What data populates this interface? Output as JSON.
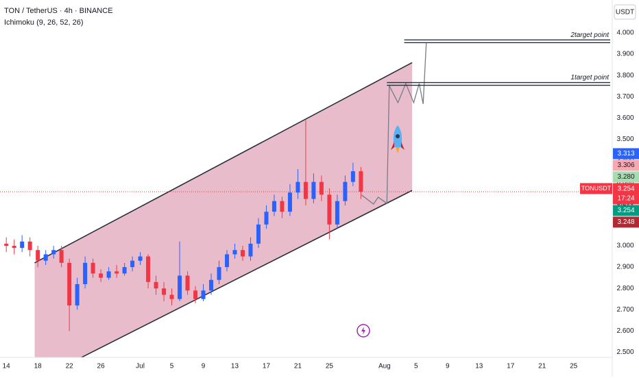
{
  "chart_data": {
    "type": "candlestick",
    "title": "TON / TetherUS · 4h · BINANCE",
    "indicator": "Ichimoku (9, 26, 52, 26)",
    "currency": "USDT",
    "symbol": "TONUSDT",
    "up_color": "#2962ff",
    "down_color": "#f23645",
    "x": [
      0,
      1,
      2,
      3,
      4,
      5,
      6,
      7,
      8,
      9,
      10,
      11,
      12,
      13,
      14,
      15,
      16,
      17,
      18,
      19,
      20,
      21,
      22,
      23,
      24,
      25,
      26,
      27,
      28,
      29,
      30,
      31,
      32,
      33,
      34,
      35,
      36,
      37,
      38,
      39,
      40,
      41,
      42,
      43,
      44,
      45
    ],
    "open": [
      3.01,
      3.0,
      2.99,
      3.02,
      2.98,
      2.93,
      2.96,
      2.98,
      2.92,
      2.72,
      2.82,
      2.92,
      2.87,
      2.85,
      2.88,
      2.87,
      2.9,
      2.93,
      2.95,
      2.83,
      2.8,
      2.77,
      2.75,
      2.86,
      2.79,
      2.75,
      2.79,
      2.84,
      2.9,
      2.96,
      2.98,
      2.95,
      3.01,
      3.1,
      3.16,
      3.21,
      3.16,
      3.25,
      3.3,
      3.22,
      3.3,
      3.24,
      3.1,
      3.21,
      3.3,
      3.35
    ],
    "high": [
      3.04,
      3.03,
      3.05,
      3.04,
      3.0,
      2.98,
      3.0,
      3.0,
      2.94,
      2.85,
      2.95,
      2.94,
      2.89,
      2.9,
      2.91,
      2.92,
      2.95,
      2.97,
      2.96,
      2.86,
      2.83,
      2.8,
      3.02,
      2.88,
      2.81,
      2.82,
      2.87,
      2.93,
      2.98,
      3.01,
      3.0,
      3.04,
      3.13,
      3.19,
      3.24,
      3.23,
      3.29,
      3.36,
      3.59,
      3.34,
      3.33,
      3.27,
      3.24,
      3.33,
      3.39,
      3.37
    ],
    "low": [
      2.97,
      2.96,
      2.97,
      2.95,
      2.9,
      2.91,
      2.94,
      2.9,
      2.6,
      2.7,
      2.8,
      2.85,
      2.83,
      2.84,
      2.85,
      2.86,
      2.88,
      2.91,
      2.8,
      2.77,
      2.74,
      2.72,
      2.74,
      2.77,
      2.73,
      2.74,
      2.77,
      2.82,
      2.88,
      2.94,
      2.93,
      2.93,
      2.99,
      3.08,
      3.14,
      3.13,
      3.14,
      3.22,
      3.19,
      3.2,
      3.21,
      3.03,
      3.08,
      3.19,
      3.28,
      3.22
    ],
    "close": [
      3.0,
      2.99,
      3.02,
      2.98,
      2.93,
      2.96,
      2.98,
      2.92,
      2.72,
      2.82,
      2.92,
      2.87,
      2.85,
      2.88,
      2.87,
      2.9,
      2.93,
      2.95,
      2.83,
      2.8,
      2.77,
      2.75,
      2.86,
      2.79,
      2.75,
      2.79,
      2.84,
      2.9,
      2.96,
      2.98,
      2.95,
      3.01,
      3.1,
      3.16,
      3.21,
      3.16,
      3.25,
      3.3,
      3.22,
      3.3,
      3.24,
      3.1,
      3.21,
      3.3,
      3.35,
      3.254
    ],
    "xlim": [
      -0.8,
      76.9
    ],
    "ylim": [
      2.476,
      4.154
    ],
    "xticks": [
      {
        "value": 0,
        "label": "14"
      },
      {
        "value": 4,
        "label": "18"
      },
      {
        "value": 8,
        "label": "22"
      },
      {
        "value": 12,
        "label": "26"
      },
      {
        "value": 17,
        "label": "Jul"
      },
      {
        "value": 21,
        "label": "5"
      },
      {
        "value": 25,
        "label": "9"
      },
      {
        "value": 29,
        "label": "13"
      },
      {
        "value": 33,
        "label": "17"
      },
      {
        "value": 37,
        "label": "21"
      },
      {
        "value": 41,
        "label": "25"
      },
      {
        "value": 48,
        "label": "Aug"
      },
      {
        "value": 52,
        "label": "5"
      },
      {
        "value": 56,
        "label": "9"
      },
      {
        "value": 60,
        "label": "13"
      },
      {
        "value": 64,
        "label": "17"
      },
      {
        "value": 68,
        "label": "21"
      },
      {
        "value": 72,
        "label": "25"
      }
    ],
    "yticks": [
      {
        "value": 4.0,
        "label": "4.000"
      },
      {
        "value": 3.9,
        "label": "3.900"
      },
      {
        "value": 3.8,
        "label": "3.800"
      },
      {
        "value": 3.7,
        "label": "3.700"
      },
      {
        "value": 3.6,
        "label": "3.600"
      },
      {
        "value": 3.5,
        "label": "3.500"
      },
      {
        "value": 3.4,
        "label": "3.400"
      },
      {
        "value": 3.3,
        "label": "3.300"
      },
      {
        "value": 3.2,
        "label": "3.200"
      },
      {
        "value": 3.1,
        "label": "3.100"
      },
      {
        "value": 3.0,
        "label": "3.000"
      },
      {
        "value": 2.9,
        "label": "2.900"
      },
      {
        "value": 2.8,
        "label": "2.800"
      },
      {
        "value": 2.7,
        "label": "2.700"
      },
      {
        "value": 2.6,
        "label": "2.600"
      },
      {
        "value": 2.5,
        "label": "2.500"
      }
    ],
    "channel": {
      "color": "#e8bccb",
      "upper": [
        [
          3.6,
          2.92
        ],
        [
          51.5,
          3.86
        ]
      ],
      "lower": [
        [
          3.6,
          2.365
        ],
        [
          51.5,
          3.26
        ]
      ]
    },
    "projection": [
      [
        45.1,
        3.238
      ],
      [
        46.6,
        3.196
      ],
      [
        47.2,
        3.228
      ],
      [
        48.3,
        3.199
      ],
      [
        48.6,
        3.752
      ],
      [
        49.7,
        3.672
      ],
      [
        50.7,
        3.762
      ],
      [
        51.7,
        3.672
      ],
      [
        52.4,
        3.762
      ],
      [
        52.9,
        3.666
      ],
      [
        53.3,
        3.955
      ]
    ],
    "targets": [
      {
        "label": "1target point",
        "value": 3.76,
        "x_start": 48.3
      },
      {
        "label": "2target point",
        "value": 3.96,
        "x_start": 50.5
      }
    ],
    "current_price": {
      "value": 3.254,
      "label": "3.254",
      "countdown": "17:24",
      "color": "#f23645"
    },
    "price_labels": [
      {
        "value": 3.313,
        "label": "3.313",
        "color": "#2962ff",
        "text_color": "#ffffff"
      },
      {
        "value": 3.306,
        "label": "3.306",
        "color": "#f7a9b2",
        "text_color": "#131722"
      },
      {
        "value": 3.28,
        "label": "3.280",
        "color": "#a8dbb0",
        "text_color": "#131722"
      },
      {
        "value": 3.254,
        "label": "3.254",
        "color": "#089981",
        "text_color": "#ffffff"
      },
      {
        "value": 3.248,
        "label": "3.248",
        "color": "#b22833",
        "text_color": "#ffffff"
      }
    ]
  }
}
